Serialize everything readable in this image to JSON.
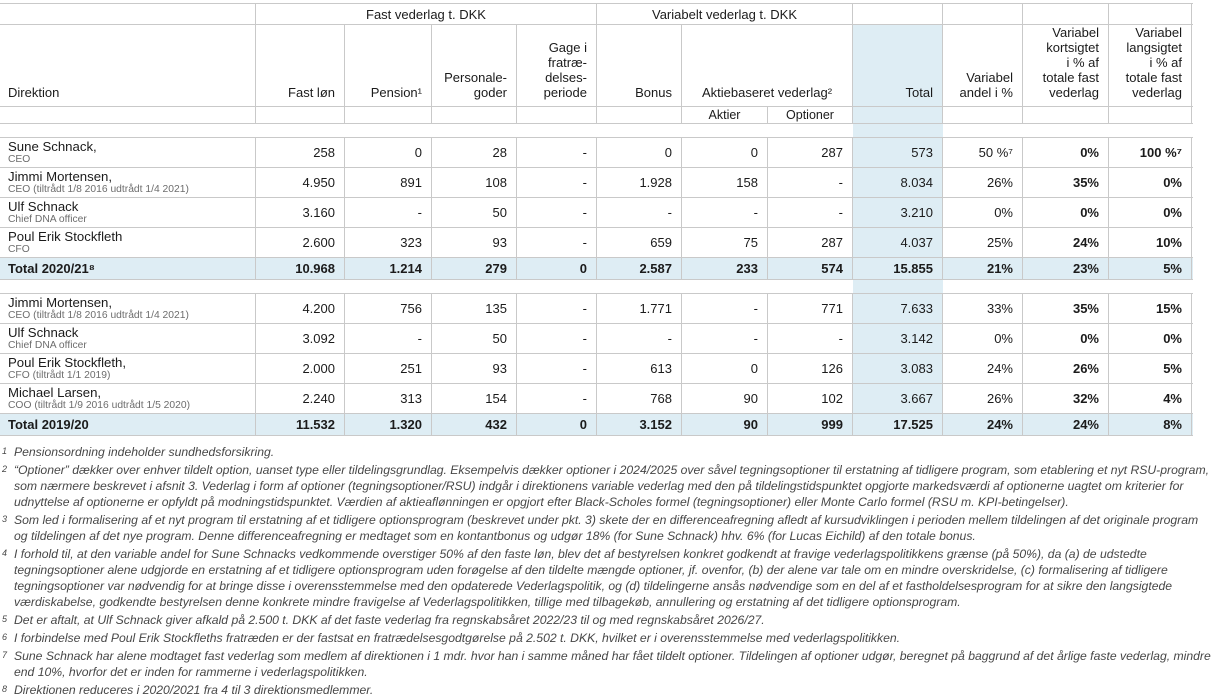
{
  "colors": {
    "total_column_highlight": "#deedf4",
    "grid_border": "#c9c9c9"
  },
  "table": {
    "group_headers": {
      "fast": "Fast vederlag t. DKK",
      "variabelt": "Variabelt vederlag t. DKK"
    },
    "columns": {
      "direktion": "Direktion",
      "fast_lon": "Fast løn",
      "pension": "Pension¹",
      "goder": "Personale-\ngoder",
      "gage": "Gage i\nfratræ-\ndelses-\nperiode",
      "bonus": "Bonus",
      "aktiebaseret": "Aktiebaseret vederlag²",
      "aktier": "Aktier",
      "optioner": "Optioner",
      "total": "Total",
      "andel": "Variabel\nandel i %",
      "kort": "Variabel\nkortsigtet\ni % af\ntotale fast\nvederlag",
      "lang": "Variabel\nlangsigtet\ni % af\ntotale fast\nvederlag"
    },
    "groups": [
      {
        "rows": [
          {
            "name": "Sune Schnack,",
            "title": "CEO",
            "fast_lon": "258",
            "pension": "0",
            "goder": "28",
            "gage": "-",
            "bonus": "0",
            "aktier": "0",
            "optioner": "287",
            "total": "573",
            "andel": "50 %⁷",
            "kort": "0%",
            "lang": "100 %⁷"
          },
          {
            "name": "Jimmi Mortensen,",
            "title": "CEO (tiltrådt 1/8 2016 udtrådt 1/4 2021)",
            "fast_lon": "4.950",
            "pension": "891",
            "goder": "108",
            "gage": "-",
            "bonus": "1.928",
            "aktier": "158",
            "optioner": "-",
            "total": "8.034",
            "andel": "26%",
            "kort": "35%",
            "lang": "0%"
          },
          {
            "name": "Ulf Schnack",
            "title": "Chief DNA officer",
            "fast_lon": "3.160",
            "pension": "-",
            "goder": "50",
            "gage": "-",
            "bonus": "-",
            "aktier": "-",
            "optioner": "-",
            "total": "3.210",
            "andel": "0%",
            "kort": "0%",
            "lang": "0%"
          },
          {
            "name": "Poul Erik Stockfleth",
            "title": "CFO",
            "fast_lon": "2.600",
            "pension": "323",
            "goder": "93",
            "gage": "-",
            "bonus": "659",
            "aktier": "75",
            "optioner": "287",
            "total": "4.037",
            "andel": "25%",
            "kort": "24%",
            "lang": "10%"
          }
        ],
        "total": {
          "label": "Total 2020/21⁸",
          "fast_lon": "10.968",
          "pension": "1.214",
          "goder": "279",
          "gage": "0",
          "bonus": "2.587",
          "aktier": "233",
          "optioner": "574",
          "total": "15.855",
          "andel": "21%",
          "kort": "23%",
          "lang": "5%"
        }
      },
      {
        "rows": [
          {
            "name": "Jimmi Mortensen,",
            "title": "CEO (tiltrådt 1/8 2016 udtrådt 1/4 2021)",
            "fast_lon": "4.200",
            "pension": "756",
            "goder": "135",
            "gage": "-",
            "bonus": "1.771",
            "aktier": "-",
            "optioner": "771",
            "total": "7.633",
            "andel": "33%",
            "kort": "35%",
            "lang": "15%"
          },
          {
            "name": "Ulf Schnack",
            "title": "Chief DNA officer",
            "fast_lon": "3.092",
            "pension": "-",
            "goder": "50",
            "gage": "-",
            "bonus": "-",
            "aktier": "-",
            "optioner": "-",
            "total": "3.142",
            "andel": "0%",
            "kort": "0%",
            "lang": "0%"
          },
          {
            "name": "Poul Erik Stockfleth,",
            "title": "CFO (tiltrådt 1/1 2019)",
            "fast_lon": "2.000",
            "pension": "251",
            "goder": "93",
            "gage": "-",
            "bonus": "613",
            "aktier": "0",
            "optioner": "126",
            "total": "3.083",
            "andel": "24%",
            "kort": "26%",
            "lang": "5%"
          },
          {
            "name": "Michael Larsen,",
            "title": "COO (tiltrådt 1/9 2016 udtrådt 1/5 2020)",
            "fast_lon": "2.240",
            "pension": "313",
            "goder": "154",
            "gage": "-",
            "bonus": "768",
            "aktier": "90",
            "optioner": "102",
            "total": "3.667",
            "andel": "26%",
            "kort": "32%",
            "lang": "4%"
          }
        ],
        "total": {
          "label": "Total 2019/20",
          "fast_lon": "11.532",
          "pension": "1.320",
          "goder": "432",
          "gage": "0",
          "bonus": "3.152",
          "aktier": "90",
          "optioner": "999",
          "total": "17.525",
          "andel": "24%",
          "kort": "24%",
          "lang": "8%"
        }
      }
    ]
  },
  "footnotes": [
    {
      "marker": "1",
      "text": "Pensionsordning indeholder sundhedsforsikring."
    },
    {
      "marker": "2",
      "text": "“Optioner” dækker over enhver tildelt option, uanset type eller tildelingsgrundlag. Eksempelvis dækker optioner i 2024/2025 over såvel tegningsoptioner til erstatning af tidligere program, som etablering et nyt RSU-program, som nærmere beskrevet i afsnit 3. Vederlag i form af optioner (tegningsoptioner/RSU) indgår i direktionens variable vederlag med den på tildelingstidspunktet opgjorte markedsværdi af optionerne uagtet om kriterier for udnyttelse af optionerne er opfyldt på modningstidspunktet. Værdien af aktieaflønningen er opgjort efter Black-Scholes formel (tegningsoptioner) eller Monte Carlo formel (RSU m. KPI-betingelser)."
    },
    {
      "marker": "3",
      "text": "Som led i formalisering af et nyt program til erstatning af et tidligere optionsprogram (beskrevet under pkt. 3) skete der en differenceafregning afledt af kursudviklingen i perioden mellem tildelingen af det originale program og tildelingen af det nye program. Denne differenceafregning er medtaget som en kontantbonus og udgør 18% (for Sune Schnack) hhv. 6% (for Lucas Eichild) af den totale bonus."
    },
    {
      "marker": "4",
      "text": "I forhold til, at den variable andel for Sune Schnacks vedkommende overstiger 50% af den faste løn, blev det af bestyrelsen konkret godkendt at fravige vederlagspolitikkens grænse (på 50%), da (a) de udstedte tegningsoptioner alene udgjorde en erstatning af et tidligere optionsprogram uden forøgelse af den tildelte mængde optioner, jf. ovenfor, (b) der alene var tale om en mindre overskridelse, (c) formalisering af tidligere tegningsoptioner var nødvendig for at bringe disse i overensstemmelse med den opdaterede Vederlagspolitik, og (d) tildelingerne ansås nødvendige som en del af et fastholdelsesprogram for at sikre den langsigtede værdiskabelse, godkendte bestyrelsen denne konkrete mindre fravigelse af Vederlagspolitikken, tillige med tilbagekøb, annullering og erstatning af det tidligere optionsprogram."
    },
    {
      "marker": "5",
      "text": "Det er aftalt, at Ulf Schnack giver afkald på 2.500 t. DKK af det faste vederlag fra regnskabsåret 2022/23 til og med regnskabsåret 2026/27."
    },
    {
      "marker": "6",
      "text": "I forbindelse med Poul Erik Stockfleths fratræden er der fastsat en fratrædelsesgodtgørelse på 2.502 t. DKK, hvilket er i overensstemmelse med vederlagspolitikken."
    },
    {
      "marker": "7",
      "text": "Sune Schnack har alene modtaget fast vederlag som medlem af direktionen i 1 mdr. hvor han i samme måned har fået tildelt optioner. Tildelingen af optioner udgør, beregnet på baggrund af det årlige faste vederlag, mindre end 10%, hvorfor det er inden for rammerne i vederlagspolitikken."
    },
    {
      "marker": "8",
      "text": "Direktionen reduceres i 2020/2021 fra 4 til 3 direktionsmedlemmer."
    }
  ]
}
